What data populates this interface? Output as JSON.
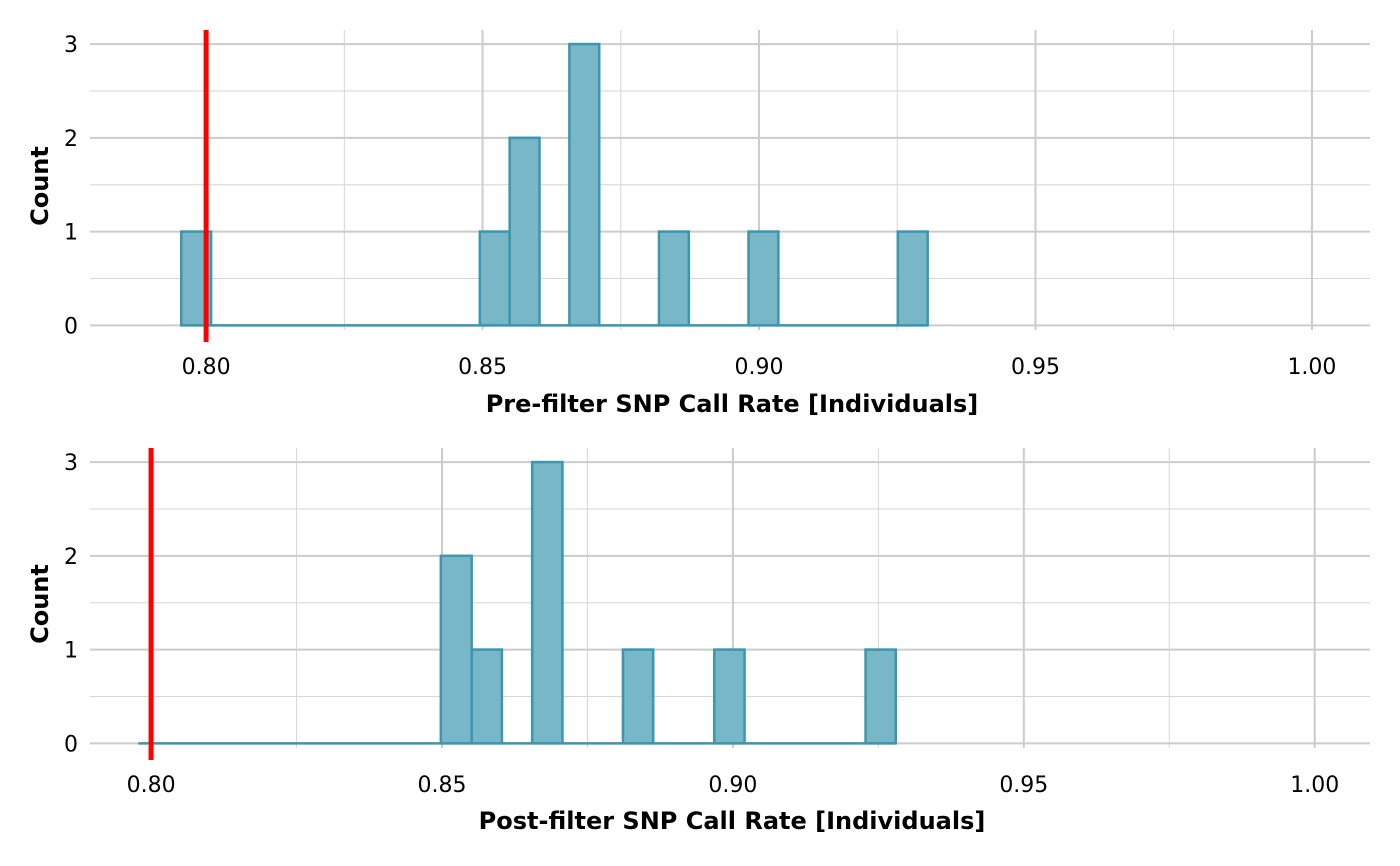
{
  "colors": {
    "bar_fill": "#78b7c7",
    "bar_stroke": "#3a97ad",
    "threshold_line": "#ff0000"
  },
  "chart_data": [
    {
      "type": "bar",
      "title": "",
      "xlabel": "Pre-filter SNP Call Rate [Individuals]",
      "ylabel": "Count",
      "xlim": [
        0.779,
        1.0105
      ],
      "ylim": [
        -0.05,
        3.15
      ],
      "x_ticks": [
        0.8,
        0.85,
        0.9,
        0.95,
        1.0
      ],
      "x_tick_labels": [
        "0.80",
        "0.85",
        "0.90",
        "0.95",
        "1.00"
      ],
      "y_ticks": [
        0,
        1,
        2,
        3
      ],
      "y_tick_labels": [
        "0",
        "1",
        "2",
        "3"
      ],
      "threshold": 0.8,
      "bin_range": [
        0.7955,
        0.9305
      ],
      "bin_width": 0.0054,
      "bins": [
        {
          "x0": 0.7955,
          "x1": 0.8009,
          "count": 1
        },
        {
          "x0": 0.8495,
          "x1": 0.8549,
          "count": 1
        },
        {
          "x0": 0.8549,
          "x1": 0.8603,
          "count": 2
        },
        {
          "x0": 0.8657,
          "x1": 0.8711,
          "count": 3
        },
        {
          "x0": 0.8819,
          "x1": 0.8873,
          "count": 1
        },
        {
          "x0": 0.8981,
          "x1": 0.9035,
          "count": 1
        },
        {
          "x0": 0.9251,
          "x1": 0.9305,
          "count": 1
        }
      ]
    },
    {
      "type": "bar",
      "title": "",
      "xlabel": "Post-filter SNP Call Rate [Individuals]",
      "ylabel": "Count",
      "xlim": [
        0.7895,
        1.0095
      ],
      "ylim": [
        -0.05,
        3.15
      ],
      "x_ticks": [
        0.8,
        0.85,
        0.9,
        0.95,
        1.0
      ],
      "x_tick_labels": [
        "0.80",
        "0.85",
        "0.90",
        "0.95",
        "1.00"
      ],
      "y_ticks": [
        0,
        1,
        2,
        3
      ],
      "y_tick_labels": [
        "0",
        "1",
        "2",
        "3"
      ],
      "threshold": 0.8,
      "bin_range": [
        0.7978,
        0.928
      ],
      "bin_width": 0.00525,
      "bins": [
        {
          "x0": 0.8498,
          "x1": 0.8551,
          "count": 2
        },
        {
          "x0": 0.8551,
          "x1": 0.8603,
          "count": 1
        },
        {
          "x0": 0.8655,
          "x1": 0.8707,
          "count": 3
        },
        {
          "x0": 0.8811,
          "x1": 0.8863,
          "count": 1
        },
        {
          "x0": 0.8968,
          "x1": 0.902,
          "count": 1
        },
        {
          "x0": 0.9228,
          "x1": 0.928,
          "count": 1
        }
      ]
    }
  ]
}
